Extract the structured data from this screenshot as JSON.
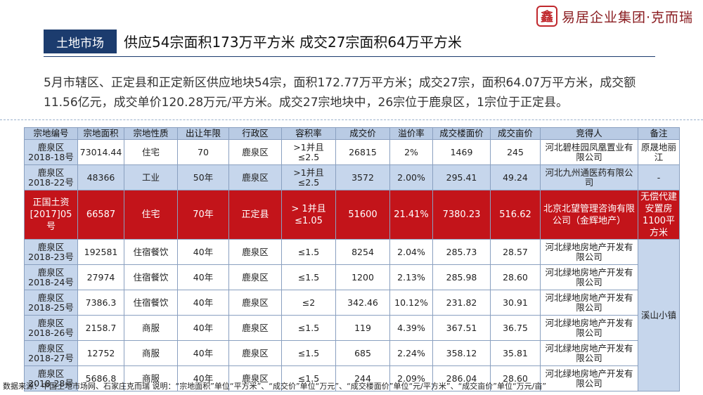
{
  "logo": {
    "seal": "鑫",
    "text": "易居企业集团·克而瑞"
  },
  "header": {
    "section_tag": "土地市场",
    "headline": "供应54宗面积173万平方米 成交27宗面积64万平方米"
  },
  "summary": [
    "5月市辖区、正定县和正定新区供应地块54宗，面积172.77万平方米；成交27宗，面积64.07万平方米，成交额",
    "11.56亿元，成交单价120.28万元/平方米。成交27宗地块中，26宗位于鹿泉区，1宗位于正定县。"
  ],
  "table": {
    "headers": [
      "宗地编号",
      "宗地面积",
      "宗地性质",
      "出让年限",
      "行政区",
      "容积率",
      "成交价",
      "溢价率",
      "成交楼面价",
      "成交亩价",
      "竞得人",
      "备注"
    ],
    "rows": [
      {
        "id": "鹿泉区2018-18号",
        "area": "73014.44",
        "use": "住宅",
        "years": "70",
        "district": "鹿泉区",
        "far": ">1并且≤2.5",
        "price": "26815",
        "premium": "2%",
        "floor_price": "1469",
        "mu_price": "245",
        "buyer": "河北碧桂园凤凰置业有限公司",
        "note": "原晟地丽江"
      },
      {
        "id": "鹿泉区2018-22号",
        "area": "48366",
        "use": "工业",
        "years": "50年",
        "district": "鹿泉区",
        "far": ">1并且≤2.5",
        "price": "3572",
        "premium": "2.00%",
        "floor_price": "295.41",
        "mu_price": "49.24",
        "buyer": "河北九州通医药有限公司",
        "note": "-"
      },
      {
        "id": "正国土资[2017]05号",
        "area": "66587",
        "use": "住宅",
        "years": "70年",
        "district": "正定县",
        "far": "> 1并且≤1.05",
        "price": "51600",
        "premium": "21.41%",
        "floor_price": "7380.23",
        "mu_price": "516.62",
        "buyer": "北京北望管理咨询有限公司（金辉地产）",
        "note": "无偿代建安置房1100平方米"
      },
      {
        "id": "鹿泉区2018-23号",
        "area": "192581",
        "use": "住宿餐饮",
        "years": "40年",
        "district": "鹿泉区",
        "far": "≤1.5",
        "price": "8254",
        "premium": "2.04%",
        "floor_price": "285.73",
        "mu_price": "28.57",
        "buyer": "河北绿地房地产开发有限公司"
      },
      {
        "id": "鹿泉区2018-24号",
        "area": "27974",
        "use": "住宿餐饮",
        "years": "40年",
        "district": "鹿泉区",
        "far": "≤1.5",
        "price": "1200",
        "premium": "2.13%",
        "floor_price": "285.98",
        "mu_price": "28.60",
        "buyer": "河北绿地房地产开发有限公司"
      },
      {
        "id": "鹿泉区2018-25号",
        "area": "7386.3",
        "use": "住宿餐饮",
        "years": "40年",
        "district": "鹿泉区",
        "far": "≤2",
        "price": "342.46",
        "premium": "10.12%",
        "floor_price": "231.82",
        "mu_price": "30.91",
        "buyer": "河北绿地房地产开发有限公司"
      },
      {
        "id": "鹿泉区2018-26号",
        "area": "2158.7",
        "use": "商服",
        "years": "40年",
        "district": "鹿泉区",
        "far": "≤1.5",
        "price": "119",
        "premium": "4.39%",
        "floor_price": "367.51",
        "mu_price": "36.75",
        "buyer": "河北绿地房地产开发有限公司"
      },
      {
        "id": "鹿泉区2018-27号",
        "area": "12752",
        "use": "商服",
        "years": "40年",
        "district": "鹿泉区",
        "far": "≤1.5",
        "price": "685",
        "premium": "2.24%",
        "floor_price": "358.12",
        "mu_price": "35.81",
        "buyer": "河北绿地房地产开发有限公司"
      },
      {
        "id": "鹿泉区2018-28号",
        "area": "5686.8",
        "use": "商服",
        "years": "40年",
        "district": "鹿泉区",
        "far": "≤1.5",
        "price": "244",
        "premium": "2.09%",
        "floor_price": "286.04",
        "mu_price": "28.60",
        "buyer": "河北绿地房地产开发有限公司"
      }
    ],
    "merged_note": "溪山小镇"
  },
  "footer": {
    "source": "数据来源：中国土地市场网、石家庄克而瑞 说明：“宗地面积”单位“平方米”、“成交价”单位“万元”、“成交楼面价”单位“元/平方米”、“成交亩价”单位“万元/亩”"
  },
  "colors": {
    "header_bg": "#1c3c6e",
    "table_head": "#b9cbe4",
    "row_blue": "#c6d6ec",
    "highlight_row": "#c3141a"
  }
}
